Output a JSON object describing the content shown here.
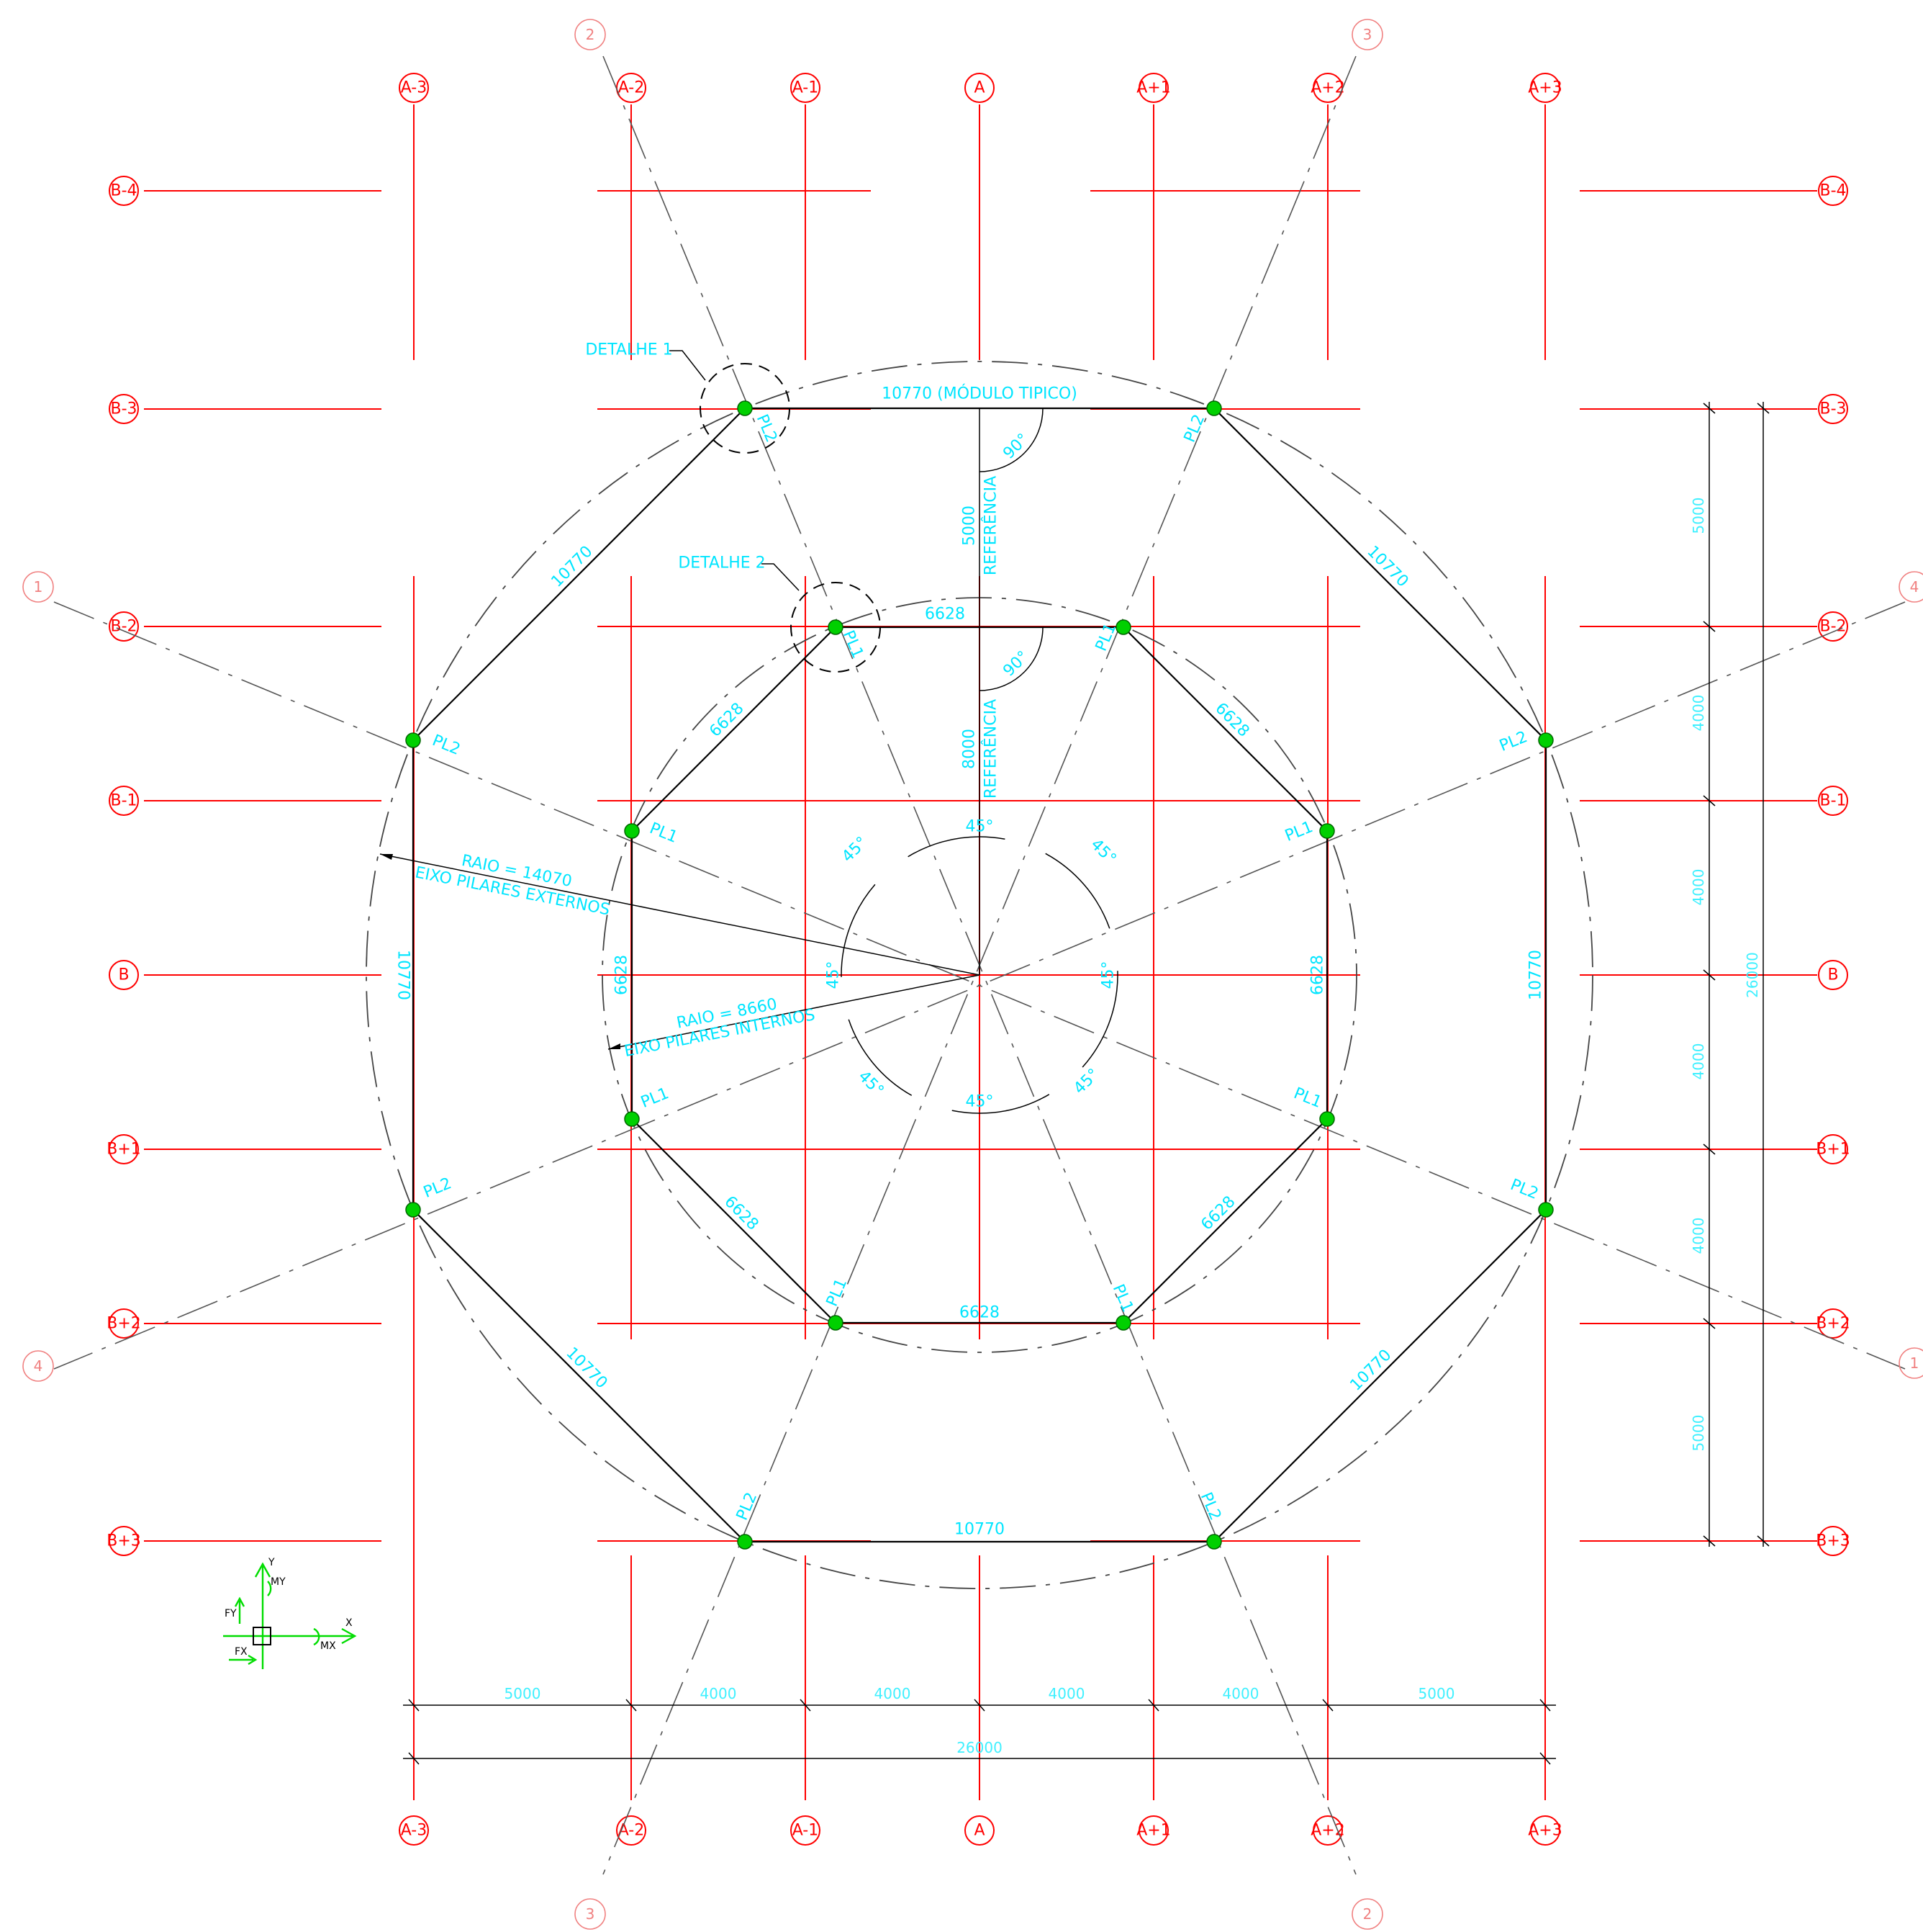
{
  "grid": {
    "columns": [
      "A-3",
      "A-2",
      "A-1",
      "A",
      "A+1",
      "A+2",
      "A+3"
    ],
    "rows": [
      "B-4",
      "B-3",
      "B-2",
      "B-1",
      "B",
      "B+1",
      "B+2",
      "B+3"
    ]
  },
  "radial_labels": {
    "top_left": "2",
    "top_right": "3",
    "left_upper": "1",
    "right_upper": "4",
    "left_lower": "4",
    "right_lower": "1",
    "bottom_left": "3",
    "bottom_right": "2"
  },
  "outer_polygon": {
    "top": "10770 (MÓDULO TIPICO)",
    "upper_left": "10770",
    "upper_right": "10770",
    "left": "10770",
    "right": "10770",
    "lower_left": "10770",
    "lower_right": "10770",
    "bottom": "10770",
    "pillar_label": "PL2"
  },
  "inner_polygon": {
    "top": "6628",
    "upper_left": "6628",
    "upper_right": "6628",
    "left": "6628",
    "right": "6628",
    "lower_left": "6628",
    "lower_right": "6628",
    "bottom": "6628",
    "pillar_label": "PL1"
  },
  "details": {
    "d1": "DETALHE 1",
    "d2": "DETALHE 2"
  },
  "reference": {
    "outer_value": "5000",
    "inner_value": "8000",
    "label": "REFERÊNCIA",
    "right_angle": "90°"
  },
  "angles": {
    "value": "45°"
  },
  "radii": {
    "outer_line1": "RAIO = 14070",
    "outer_line2": "EIXO PILARES EXTERNOS",
    "inner_line1": "RAIO = 8660",
    "inner_line2": "EIXO PILARES INTERNOS"
  },
  "dims_bottom": {
    "segments": [
      "5000",
      "4000",
      "4000",
      "4000",
      "4000",
      "5000"
    ],
    "total": "26000"
  },
  "dims_right": {
    "segments": [
      "5000",
      "4000",
      "4000",
      "4000",
      "4000",
      "5000"
    ],
    "total": "26000"
  },
  "axes_icon": {
    "y": "Y",
    "x": "X",
    "my": "MY",
    "fy": "FY",
    "fx": "FX",
    "mx": "MX"
  }
}
